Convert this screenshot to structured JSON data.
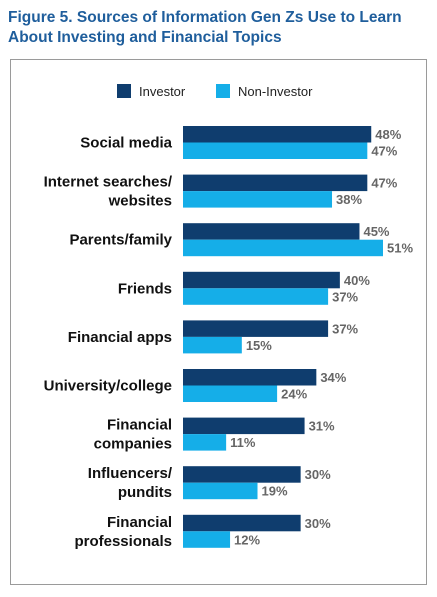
{
  "figure": {
    "title": "Figure 5. Sources of Information Gen Zs Use to Learn About Investing and Financial Topics"
  },
  "colors": {
    "investor": "#0f3d6e",
    "non_investor": "#15aee8",
    "title": "#1f5e9c"
  },
  "chart_data": {
    "type": "bar",
    "orientation": "horizontal",
    "categories": [
      [
        "Social media"
      ],
      [
        "Internet searches/",
        "websites"
      ],
      [
        "Parents/family"
      ],
      [
        "Friends"
      ],
      [
        "Financial apps"
      ],
      [
        "University/college"
      ],
      [
        "Financial",
        "companies"
      ],
      [
        "Influencers/",
        "pundits"
      ],
      [
        "Financial",
        "professionals"
      ]
    ],
    "series": [
      {
        "name": "Investor",
        "values": [
          48,
          47,
          45,
          40,
          37,
          34,
          31,
          30,
          30
        ],
        "color": "#0f3d6e"
      },
      {
        "name": "Non-Investor",
        "values": [
          47,
          38,
          51,
          37,
          15,
          24,
          11,
          19,
          12
        ],
        "color": "#15aee8"
      }
    ],
    "value_suffix": "%",
    "legend_position": "top-center",
    "grid": false,
    "xlim": [
      0,
      51
    ]
  }
}
